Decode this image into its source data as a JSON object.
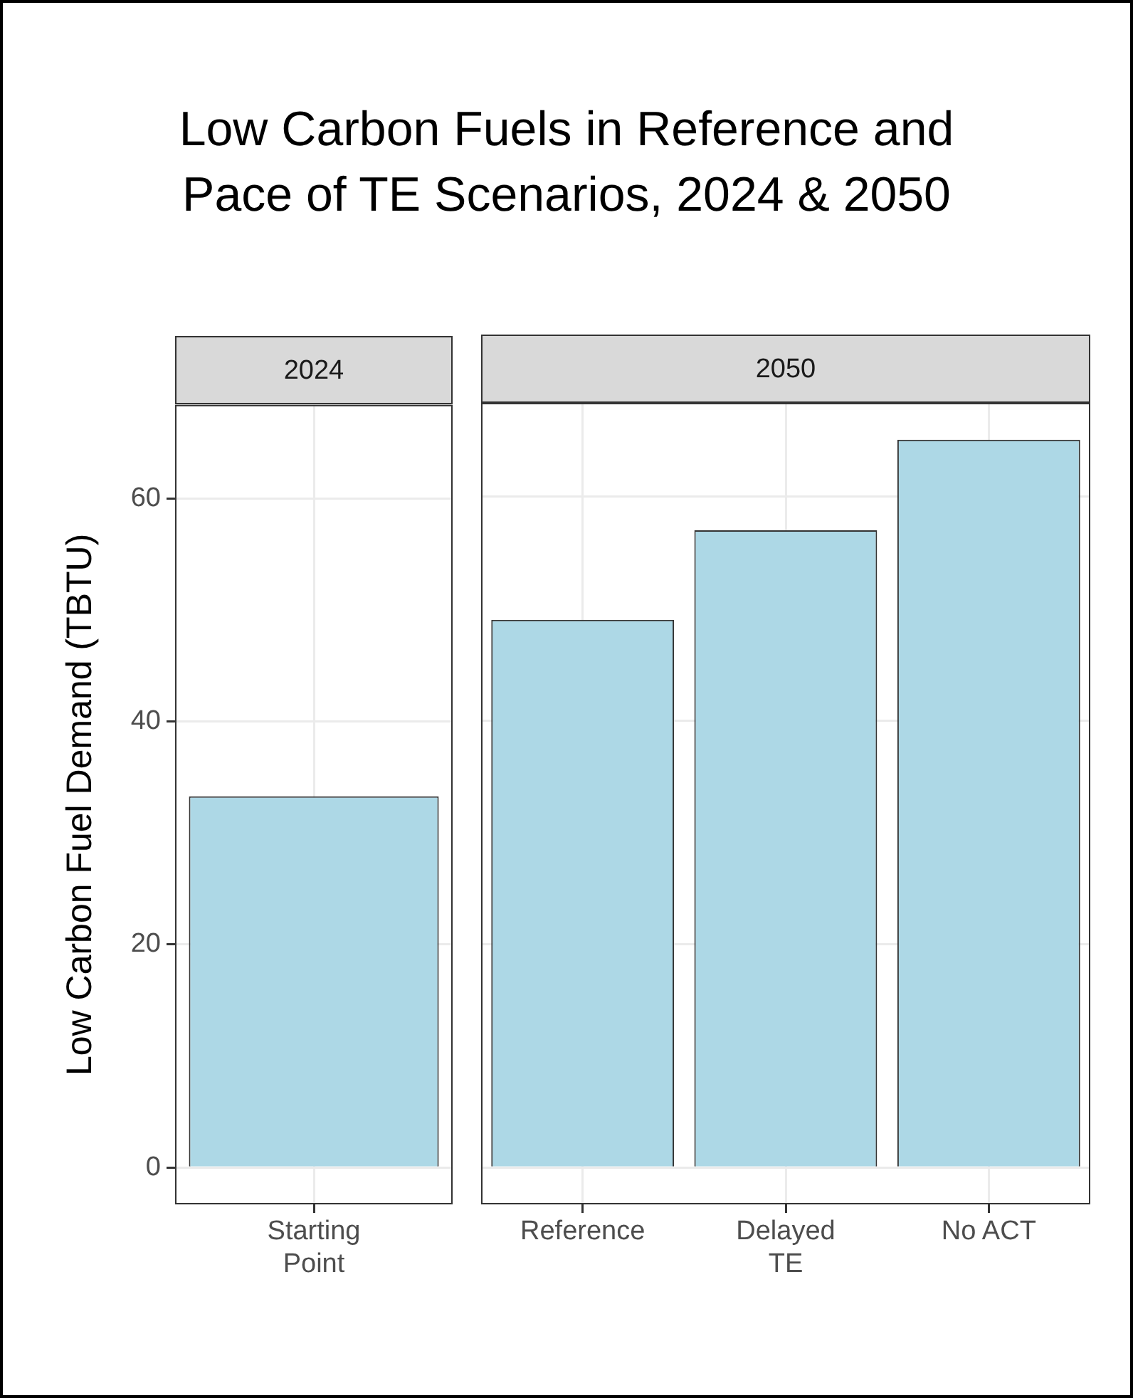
{
  "chart_data": [
    {
      "type": "bar",
      "title": "Low Carbon Fuels in Reference and\nPace of TE Scenarios, 2024 & 2050",
      "subtitle": "2024",
      "ylabel": "Low Carbon Fuel Demand (TBTU)",
      "categories": [
        "Starting\nPoint"
      ],
      "values": [
        33.3
      ],
      "color": "#add8e6",
      "ylim": [
        -3.3,
        68.4
      ],
      "yticks": [
        0,
        20,
        40,
        60
      ],
      "grid": true
    },
    {
      "type": "bar",
      "subtitle": "2050",
      "categories": [
        "Reference",
        "Delayed\nTE",
        "No ACT"
      ],
      "values": [
        49.0,
        57.0,
        65.1
      ],
      "color": "#add8e6",
      "ylim": [
        -3.3,
        68.4
      ],
      "yticks": [
        0,
        20,
        40,
        60
      ],
      "grid": true,
      "tick_labels": "x"
    }
  ]
}
